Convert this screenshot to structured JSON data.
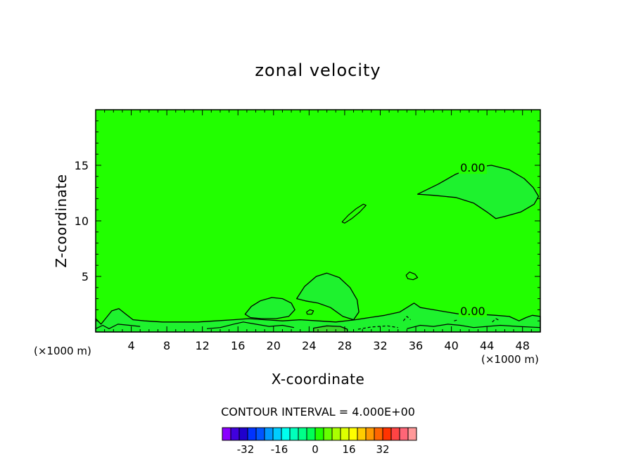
{
  "chart_data": {
    "type": "contour",
    "title": "zonal velocity",
    "xlabel": "X-coordinate",
    "ylabel": "Z-coordinate",
    "x_unit": "(×1000 m)",
    "xlim": [
      0,
      50
    ],
    "ylim": [
      0,
      20
    ],
    "x_ticks": [
      4,
      8,
      12,
      16,
      20,
      24,
      28,
      32,
      36,
      40,
      44,
      48
    ],
    "y_ticks": [
      5,
      10,
      15
    ],
    "background_fill_color": "#22ff00",
    "contour_interval_text": "CONTOUR INTERVAL = 4.000E+00",
    "contour_labels": [
      {
        "text": "0.00",
        "x": 42.4,
        "z": 14.8
      },
      {
        "text": "0.00",
        "x": 42.4,
        "z": 1.9
      }
    ],
    "regions": [
      {
        "name": "upper-right-negative",
        "fill": "#1ef22e",
        "outline": [
          [
            36.2,
            12.4
          ],
          [
            38.5,
            13.3
          ],
          [
            40.5,
            14.2
          ],
          [
            42.5,
            14.8
          ],
          [
            44.5,
            15.0
          ],
          [
            46.5,
            14.6
          ],
          [
            48.2,
            13.8
          ],
          [
            49.2,
            13.0
          ],
          [
            49.8,
            12.2
          ],
          [
            49.3,
            11.5
          ],
          [
            47.8,
            10.8
          ],
          [
            46.0,
            10.4
          ],
          [
            45.0,
            10.2
          ],
          [
            44.0,
            10.8
          ],
          [
            42.5,
            11.6
          ],
          [
            40.5,
            12.1
          ],
          [
            38.0,
            12.3
          ],
          [
            36.2,
            12.4
          ]
        ]
      },
      {
        "name": "bump-near-x26",
        "fill": "#1ef22e",
        "outline": [
          [
            22.6,
            3.0
          ],
          [
            23.5,
            4.1
          ],
          [
            24.8,
            5.0
          ],
          [
            26.0,
            5.3
          ],
          [
            27.4,
            4.9
          ],
          [
            28.6,
            4.0
          ],
          [
            29.4,
            2.9
          ],
          [
            29.6,
            1.8
          ],
          [
            29.0,
            1.1
          ],
          [
            27.8,
            1.4
          ],
          [
            26.4,
            2.2
          ],
          [
            25.0,
            2.6
          ],
          [
            23.6,
            2.8
          ],
          [
            22.6,
            3.0
          ]
        ]
      },
      {
        "name": "bump-near-x20",
        "fill": "#1ef22e",
        "outline": [
          [
            16.8,
            1.6
          ],
          [
            17.5,
            2.3
          ],
          [
            18.5,
            2.8
          ],
          [
            19.8,
            3.1
          ],
          [
            21.0,
            3.0
          ],
          [
            22.0,
            2.6
          ],
          [
            22.4,
            2.0
          ],
          [
            21.7,
            1.4
          ],
          [
            20.3,
            1.2
          ],
          [
            18.6,
            1.2
          ],
          [
            17.4,
            1.3
          ],
          [
            16.8,
            1.6
          ]
        ]
      },
      {
        "name": "bottom-band",
        "fill": "#1ef22e",
        "outline": [
          [
            0,
            0
          ],
          [
            0,
            1.2
          ],
          [
            0.6,
            0.7
          ],
          [
            1.2,
            1.3
          ],
          [
            1.8,
            1.9
          ],
          [
            2.6,
            2.1
          ],
          [
            3.4,
            1.6
          ],
          [
            4.2,
            1.1
          ],
          [
            5.5,
            1.0
          ],
          [
            7.5,
            0.9
          ],
          [
            9.5,
            0.9
          ],
          [
            11.5,
            0.9
          ],
          [
            13.5,
            1.0
          ],
          [
            15.5,
            1.1
          ],
          [
            17.2,
            1.2
          ],
          [
            19.0,
            1.1
          ],
          [
            21.0,
            1.0
          ],
          [
            23.0,
            1.1
          ],
          [
            25.0,
            1.0
          ],
          [
            27.0,
            0.9
          ],
          [
            29.2,
            1.1
          ],
          [
            30.8,
            1.3
          ],
          [
            32.5,
            1.5
          ],
          [
            34.2,
            1.8
          ],
          [
            35.2,
            2.3
          ],
          [
            35.8,
            2.6
          ],
          [
            36.5,
            2.2
          ],
          [
            38.0,
            2.0
          ],
          [
            39.5,
            1.8
          ],
          [
            41.0,
            1.6
          ],
          [
            43.0,
            1.6
          ],
          [
            45.0,
            1.5
          ],
          [
            46.5,
            1.4
          ],
          [
            47.6,
            1.0
          ],
          [
            48.4,
            1.3
          ],
          [
            49.1,
            1.5
          ],
          [
            50,
            1.4
          ],
          [
            50,
            0
          ]
        ]
      },
      {
        "name": "bottom-core",
        "fill": "#3ad62a",
        "outline": [
          [
            24.5,
            0
          ],
          [
            24.5,
            0.35
          ],
          [
            26.0,
            0.55
          ],
          [
            27.5,
            0.5
          ],
          [
            28.3,
            0.25
          ],
          [
            28.3,
            0
          ]
        ]
      }
    ],
    "lines": [
      {
        "name": "ellipse-mid",
        "style": "solid",
        "points": [
          [
            27.7,
            9.9
          ],
          [
            28.4,
            10.5
          ],
          [
            29.3,
            11.1
          ],
          [
            30.1,
            11.5
          ],
          [
            30.4,
            11.4
          ],
          [
            29.7,
            10.8
          ],
          [
            28.8,
            10.2
          ],
          [
            28.0,
            9.8
          ],
          [
            27.7,
            9.9
          ]
        ]
      },
      {
        "name": "small-cell-x35",
        "style": "solid",
        "points": [
          [
            34.9,
            5.1
          ],
          [
            35.3,
            5.4
          ],
          [
            35.9,
            5.2
          ],
          [
            36.2,
            4.9
          ],
          [
            35.7,
            4.7
          ],
          [
            35.1,
            4.8
          ],
          [
            34.9,
            5.1
          ]
        ]
      },
      {
        "name": "small-cell-x24",
        "style": "solid",
        "points": [
          [
            23.7,
            1.8
          ],
          [
            24.1,
            2.0
          ],
          [
            24.5,
            1.9
          ],
          [
            24.3,
            1.6
          ],
          [
            23.8,
            1.6
          ],
          [
            23.7,
            1.8
          ]
        ]
      },
      {
        "name": "left-wiggle",
        "style": "solid",
        "points": [
          [
            0,
            0.3
          ],
          [
            0.8,
            0.6
          ],
          [
            1.5,
            0.3
          ],
          [
            2.5,
            0.7
          ],
          [
            3.8,
            0.6
          ],
          [
            5.0,
            0.5
          ]
        ]
      },
      {
        "name": "mid-wiggle",
        "style": "solid",
        "points": [
          [
            12.5,
            0.3
          ],
          [
            14.0,
            0.4
          ],
          [
            15.5,
            0.7
          ],
          [
            16.6,
            0.9
          ],
          [
            18.0,
            0.7
          ],
          [
            19.5,
            0.5
          ],
          [
            21.0,
            0.6
          ],
          [
            22.3,
            0.4
          ]
        ]
      },
      {
        "name": "right-wiggle",
        "style": "solid",
        "points": [
          [
            35.0,
            0.3
          ],
          [
            36.5,
            0.6
          ],
          [
            38.0,
            0.5
          ],
          [
            39.6,
            0.7
          ],
          [
            41.0,
            0.6
          ],
          [
            42.5,
            0.4
          ],
          [
            44.0,
            0.5
          ],
          [
            45.5,
            0.6
          ],
          [
            47.5,
            0.5
          ],
          [
            50,
            0.4
          ]
        ]
      },
      {
        "name": "dash-a",
        "style": "dashed",
        "points": [
          [
            29.5,
            0.25
          ],
          [
            31.0,
            0.45
          ],
          [
            32.8,
            0.55
          ],
          [
            34.0,
            0.4
          ]
        ]
      },
      {
        "name": "dash-b",
        "style": "dashed",
        "points": [
          [
            34.6,
            1.0
          ],
          [
            35.0,
            1.4
          ],
          [
            35.4,
            1.1
          ]
        ]
      },
      {
        "name": "dash-c",
        "style": "dashed",
        "points": [
          [
            44.6,
            0.9
          ],
          [
            45.0,
            1.2
          ],
          [
            45.5,
            1.0
          ]
        ]
      },
      {
        "name": "dash-d",
        "style": "dashed",
        "points": [
          [
            40.3,
            1.0
          ],
          [
            40.8,
            1.1
          ]
        ]
      }
    ],
    "colorbar": {
      "colors": [
        "#8a00ff",
        "#4000dd",
        "#2000cc",
        "#0033ff",
        "#0055ff",
        "#0099ff",
        "#00ccff",
        "#00ffee",
        "#00ffbb",
        "#00ff88",
        "#00ff55",
        "#22ff00",
        "#66ff00",
        "#aaff00",
        "#ddff00",
        "#ffff00",
        "#ffcc00",
        "#ff9900",
        "#ff6600",
        "#ff3300",
        "#ff4444",
        "#ff6677",
        "#ff9999"
      ],
      "tick_labels": [
        "-32",
        "-16",
        "0",
        "16",
        "32"
      ]
    },
    "grid": false
  }
}
